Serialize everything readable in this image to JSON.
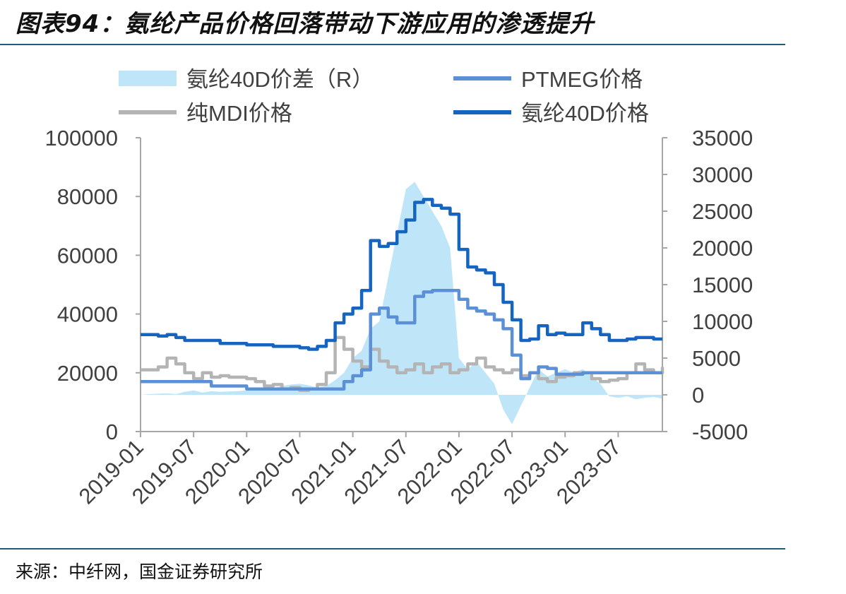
{
  "header": {
    "title": "图表94：氨纶产品价格回落带动下游应用的渗透提升"
  },
  "footer": {
    "source": "来源：中纤网，国金证券研究所"
  },
  "colors": {
    "accent_rule": "#1f5c7a"
  },
  "chart_data": {
    "type": "line",
    "legend_placement": "top",
    "legend": [
      {
        "name": "氨纶40D价差（R）",
        "kind": "area",
        "color": "#bfe6f8"
      },
      {
        "name": "PTMEG价格",
        "kind": "line",
        "color": "#5b8fd6"
      },
      {
        "name": "纯MDI价格",
        "kind": "line",
        "color": "#b4b4b4"
      },
      {
        "name": "氨纶40D价格",
        "kind": "line",
        "color": "#1565c0"
      }
    ],
    "left_axis": {
      "ylim": [
        0,
        100000
      ],
      "ticks": [
        "100000",
        "80000",
        "60000",
        "40000",
        "20000",
        "0"
      ]
    },
    "right_axis": {
      "ylim": [
        -5000,
        35000
      ],
      "ticks": [
        "35000",
        "30000",
        "25000",
        "20000",
        "15000",
        "10000",
        "5000",
        "0",
        "-5000"
      ]
    },
    "x_ticks": [
      "2019-01",
      "2019-07",
      "2020-01",
      "2020-07",
      "2021-01",
      "2021-07",
      "2022-01",
      "2022-07",
      "2023-01",
      "2023-07"
    ],
    "x_range": [
      "2019-01",
      "2023-12"
    ],
    "series": [
      {
        "name": "氨纶40D价格",
        "axis": "left",
        "color": "#1565c0",
        "points": [
          [
            "2019-01",
            33000
          ],
          [
            "2019-03",
            32500
          ],
          [
            "2019-04",
            33000
          ],
          [
            "2019-05",
            32000
          ],
          [
            "2019-06",
            31000
          ],
          [
            "2019-08",
            31000
          ],
          [
            "2019-10",
            30000
          ],
          [
            "2020-01",
            29500
          ],
          [
            "2020-04",
            29000
          ],
          [
            "2020-06",
            29000
          ],
          [
            "2020-07",
            28500
          ],
          [
            "2020-08",
            28000
          ],
          [
            "2020-09",
            29000
          ],
          [
            "2020-10",
            31000
          ],
          [
            "2020-11",
            37000
          ],
          [
            "2020-12",
            40000
          ],
          [
            "2021-01",
            42000
          ],
          [
            "2021-02",
            48000
          ],
          [
            "2021-03",
            65000
          ],
          [
            "2021-04",
            63000
          ],
          [
            "2021-05",
            64000
          ],
          [
            "2021-06",
            68000
          ],
          [
            "2021-07",
            72000
          ],
          [
            "2021-08",
            78000
          ],
          [
            "2021-09",
            79000
          ],
          [
            "2021-10",
            77000
          ],
          [
            "2021-11",
            76000
          ],
          [
            "2021-12",
            74000
          ],
          [
            "2022-01",
            62000
          ],
          [
            "2022-02",
            56000
          ],
          [
            "2022-03",
            55000
          ],
          [
            "2022-04",
            54000
          ],
          [
            "2022-05",
            50000
          ],
          [
            "2022-06",
            44000
          ],
          [
            "2022-07",
            38000
          ],
          [
            "2022-08",
            31000
          ],
          [
            "2022-09",
            31500
          ],
          [
            "2022-10",
            36000
          ],
          [
            "2022-11",
            33000
          ],
          [
            "2022-12",
            33500
          ],
          [
            "2023-01",
            33000
          ],
          [
            "2023-02",
            33000
          ],
          [
            "2023-03",
            37000
          ],
          [
            "2023-04",
            35000
          ],
          [
            "2023-05",
            33000
          ],
          [
            "2023-06",
            31000
          ],
          [
            "2023-07",
            31000
          ],
          [
            "2023-08",
            31500
          ],
          [
            "2023-09",
            32000
          ],
          [
            "2023-10",
            32000
          ],
          [
            "2023-11",
            31500
          ],
          [
            "2023-12",
            31500
          ]
        ]
      },
      {
        "name": "PTMEG价格",
        "axis": "left",
        "color": "#5b8fd6",
        "points": [
          [
            "2019-01",
            17000
          ],
          [
            "2019-06",
            17000
          ],
          [
            "2019-09",
            15500
          ],
          [
            "2020-01",
            14500
          ],
          [
            "2020-06",
            14500
          ],
          [
            "2020-10",
            14500
          ],
          [
            "2020-12",
            17000
          ],
          [
            "2021-01",
            19000
          ],
          [
            "2021-02",
            21000
          ],
          [
            "2021-03",
            40000
          ],
          [
            "2021-04",
            42000
          ],
          [
            "2021-05",
            39000
          ],
          [
            "2021-06",
            37000
          ],
          [
            "2021-07",
            37000
          ],
          [
            "2021-08",
            46000
          ],
          [
            "2021-09",
            47500
          ],
          [
            "2021-10",
            48000
          ],
          [
            "2021-12",
            48000
          ],
          [
            "2022-01",
            45000
          ],
          [
            "2022-02",
            42000
          ],
          [
            "2022-03",
            41000
          ],
          [
            "2022-04",
            40000
          ],
          [
            "2022-05",
            38000
          ],
          [
            "2022-06",
            35000
          ],
          [
            "2022-07",
            26000
          ],
          [
            "2022-08",
            18000
          ],
          [
            "2022-09",
            20000
          ],
          [
            "2022-10",
            22000
          ],
          [
            "2022-11",
            21500
          ],
          [
            "2022-12",
            19500
          ],
          [
            "2023-01",
            19500
          ],
          [
            "2023-03",
            20000
          ],
          [
            "2023-06",
            20000
          ],
          [
            "2023-12",
            20000
          ]
        ]
      },
      {
        "name": "纯MDI价格",
        "axis": "left",
        "color": "#b4b4b4",
        "points": [
          [
            "2019-01",
            21000
          ],
          [
            "2019-02",
            21000
          ],
          [
            "2019-03",
            22000
          ],
          [
            "2019-04",
            25000
          ],
          [
            "2019-05",
            23000
          ],
          [
            "2019-06",
            20000
          ],
          [
            "2019-07",
            18000
          ],
          [
            "2019-08",
            20000
          ],
          [
            "2019-09",
            18500
          ],
          [
            "2019-10",
            19000
          ],
          [
            "2019-11",
            18500
          ],
          [
            "2019-12",
            18500
          ],
          [
            "2020-01",
            18000
          ],
          [
            "2020-02",
            17000
          ],
          [
            "2020-03",
            15500
          ],
          [
            "2020-04",
            16000
          ],
          [
            "2020-05",
            14500
          ],
          [
            "2020-06",
            15000
          ],
          [
            "2020-07",
            14000
          ],
          [
            "2020-08",
            14500
          ],
          [
            "2020-09",
            16000
          ],
          [
            "2020-10",
            20000
          ],
          [
            "2020-11",
            32000
          ],
          [
            "2020-12",
            28000
          ],
          [
            "2021-01",
            24000
          ],
          [
            "2021-02",
            22000
          ],
          [
            "2021-03",
            28000
          ],
          [
            "2021-04",
            24000
          ],
          [
            "2021-05",
            22000
          ],
          [
            "2021-06",
            20000
          ],
          [
            "2021-07",
            21000
          ],
          [
            "2021-08",
            23000
          ],
          [
            "2021-09",
            20000
          ],
          [
            "2021-10",
            22000
          ],
          [
            "2021-11",
            23000
          ],
          [
            "2021-12",
            20000
          ],
          [
            "2022-01",
            21000
          ],
          [
            "2022-02",
            23000
          ],
          [
            "2022-03",
            25000
          ],
          [
            "2022-04",
            22000
          ],
          [
            "2022-05",
            21000
          ],
          [
            "2022-06",
            20000
          ],
          [
            "2022-07",
            21000
          ],
          [
            "2022-08",
            19000
          ],
          [
            "2022-09",
            20000
          ],
          [
            "2022-10",
            18000
          ],
          [
            "2022-11",
            17000
          ],
          [
            "2022-12",
            18500
          ],
          [
            "2023-01",
            19000
          ],
          [
            "2023-02",
            20000
          ],
          [
            "2023-03",
            20000
          ],
          [
            "2023-04",
            18000
          ],
          [
            "2023-05",
            17000
          ],
          [
            "2023-06",
            17500
          ],
          [
            "2023-07",
            18000
          ],
          [
            "2023-08",
            20000
          ],
          [
            "2023-09",
            23000
          ],
          [
            "2023-10",
            21000
          ],
          [
            "2023-11",
            20000
          ],
          [
            "2023-12",
            22000
          ]
        ]
      },
      {
        "name": "氨纶40D价差（R）",
        "axis": "right",
        "color": "#bfe6f8",
        "points": [
          [
            "2019-01",
            0
          ],
          [
            "2019-02",
            100
          ],
          [
            "2019-03",
            150
          ],
          [
            "2019-04",
            200
          ],
          [
            "2019-05",
            100
          ],
          [
            "2019-06",
            400
          ],
          [
            "2019-07",
            600
          ],
          [
            "2019-08",
            300
          ],
          [
            "2019-09",
            500
          ],
          [
            "2019-10",
            400
          ],
          [
            "2019-11",
            450
          ],
          [
            "2019-12",
            500
          ],
          [
            "2020-01",
            600
          ],
          [
            "2020-02",
            800
          ],
          [
            "2020-03",
            1000
          ],
          [
            "2020-04",
            900
          ],
          [
            "2020-05",
            1200
          ],
          [
            "2020-06",
            1400
          ],
          [
            "2020-07",
            1500
          ],
          [
            "2020-08",
            1300
          ],
          [
            "2020-09",
            1000
          ],
          [
            "2020-10",
            1200
          ],
          [
            "2020-11",
            2000
          ],
          [
            "2020-12",
            3000
          ],
          [
            "2021-01",
            5000
          ],
          [
            "2021-02",
            6000
          ],
          [
            "2021-03",
            9000
          ],
          [
            "2021-04",
            10000
          ],
          [
            "2021-05",
            16000
          ],
          [
            "2021-06",
            22000
          ],
          [
            "2021-07",
            28000
          ],
          [
            "2021-08",
            29000
          ],
          [
            "2021-09",
            27000
          ],
          [
            "2021-10",
            25000
          ],
          [
            "2021-11",
            23000
          ],
          [
            "2021-12",
            20000
          ],
          [
            "2022-01",
            5000
          ],
          [
            "2022-02",
            3500
          ],
          [
            "2022-03",
            4500
          ],
          [
            "2022-04",
            3000
          ],
          [
            "2022-05",
            1500
          ],
          [
            "2022-06",
            -2000
          ],
          [
            "2022-07",
            -4000
          ],
          [
            "2022-08",
            -1500
          ],
          [
            "2022-09",
            1000
          ],
          [
            "2022-10",
            3500
          ],
          [
            "2022-11",
            2500
          ],
          [
            "2022-12",
            3000
          ],
          [
            "2023-01",
            3500
          ],
          [
            "2023-02",
            3000
          ],
          [
            "2023-03",
            3500
          ],
          [
            "2023-04",
            2500
          ],
          [
            "2023-05",
            1500
          ],
          [
            "2023-06",
            -200
          ],
          [
            "2023-07",
            -400
          ],
          [
            "2023-08",
            -200
          ],
          [
            "2023-09",
            -600
          ],
          [
            "2023-10",
            -400
          ],
          [
            "2023-11",
            -300
          ],
          [
            "2023-12",
            -500
          ]
        ]
      }
    ]
  }
}
